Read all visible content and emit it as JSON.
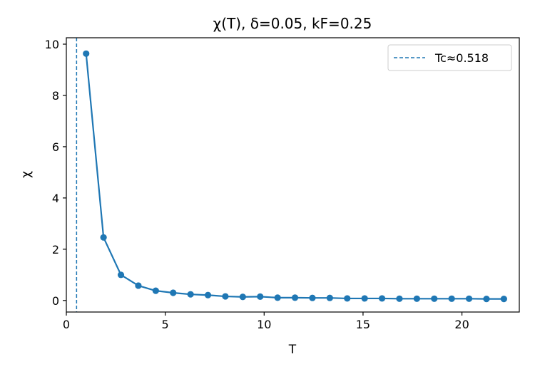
{
  "chart_data": {
    "type": "line",
    "title": "χ(T), δ=0.05, kF=0.25",
    "xlabel": "T",
    "ylabel": "χ",
    "xlim": [
      0,
      22.9
    ],
    "ylim": [
      -0.45,
      10.25
    ],
    "xticks": [
      0,
      5,
      10,
      15,
      20
    ],
    "yticks": [
      0,
      2,
      4,
      6,
      8,
      10
    ],
    "grid": false,
    "legend_position": "top-right",
    "series": [
      {
        "name": "",
        "color": "#1f77b4",
        "marker": "circle",
        "x": [
          1.0,
          1.88,
          2.76,
          3.64,
          4.52,
          5.4,
          6.28,
          7.16,
          8.04,
          8.92,
          9.8,
          10.68,
          11.56,
          12.44,
          13.32,
          14.2,
          15.08,
          15.96,
          16.84,
          17.72,
          18.6,
          19.48,
          20.36,
          21.24,
          22.12
        ],
        "y": [
          9.63,
          2.46,
          1.0,
          0.58,
          0.38,
          0.3,
          0.24,
          0.21,
          0.16,
          0.14,
          0.15,
          0.11,
          0.11,
          0.1,
          0.1,
          0.08,
          0.08,
          0.08,
          0.07,
          0.07,
          0.07,
          0.07,
          0.07,
          0.06,
          0.06
        ]
      }
    ],
    "vline": {
      "label": "Tc≈0.518",
      "x": 0.518,
      "color": "#1f77b4",
      "style": "dashed"
    }
  }
}
